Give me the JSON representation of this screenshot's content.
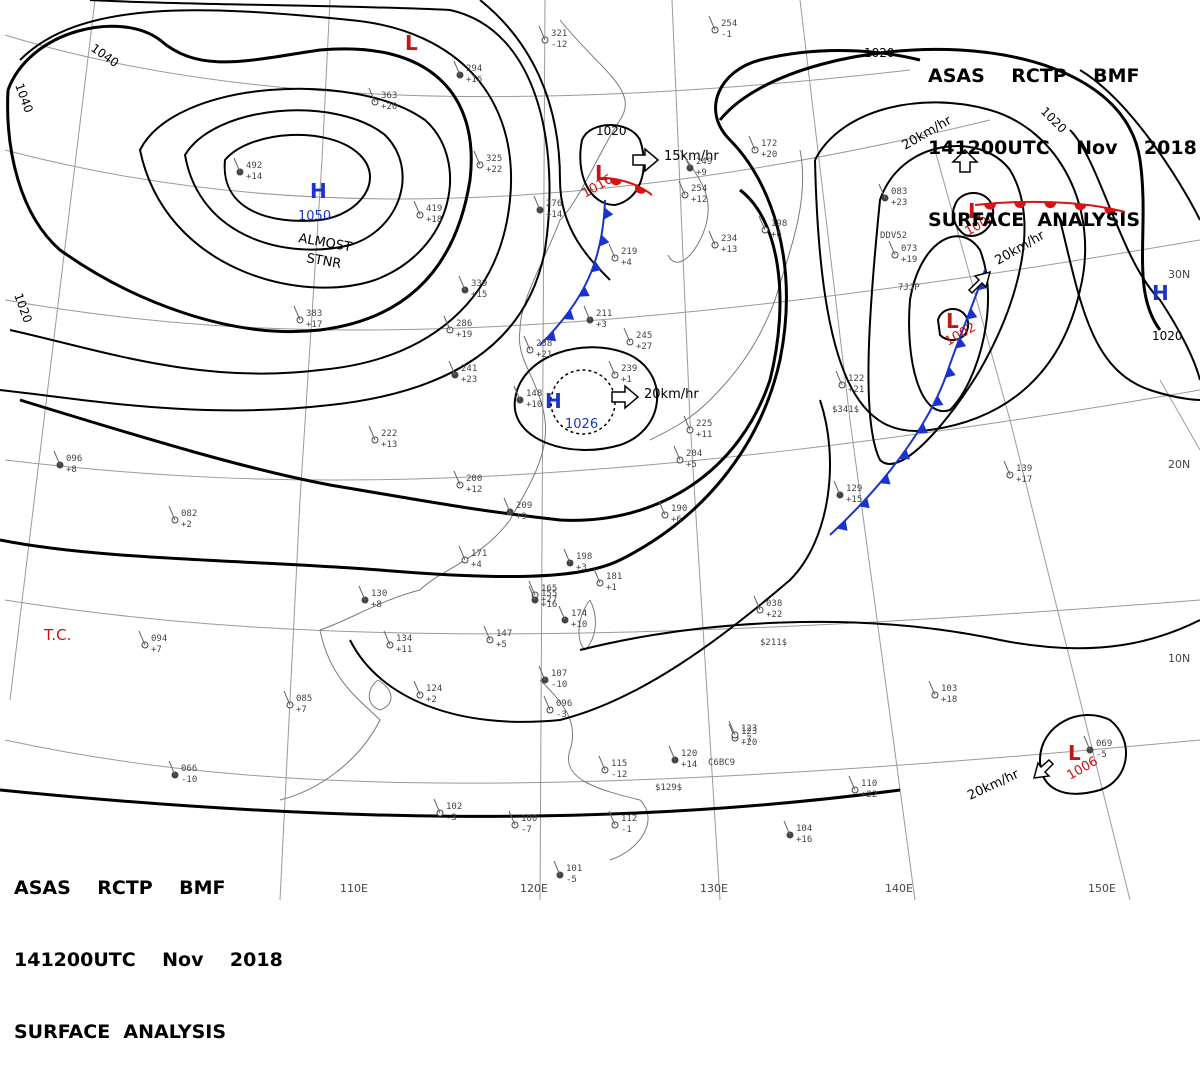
{
  "header_top_right": {
    "line1": "ASAS    RCTP    BMF",
    "line2": "141200UTC    Nov    2018",
    "line3": "SURFACE  ANALYSIS"
  },
  "header_bottom_left": {
    "line1": "ASAS    RCTP    BMF",
    "line2": "141200UTC    Nov    2018",
    "line3": "SURFACE  ANALYSIS"
  },
  "longitude_labels": [
    "110E",
    "120E",
    "130E",
    "140E",
    "150E"
  ],
  "latitude_labels": [
    "30N",
    "20N",
    "10N"
  ],
  "isobar_labels": [
    "1040",
    "1040",
    "1020",
    "1020",
    "1020",
    "1020",
    "1020"
  ],
  "pressure_systems": [
    {
      "type": "H",
      "value": "1050",
      "note": "ALMOST STNR",
      "color": "#1a33cc"
    },
    {
      "type": "H",
      "value": "1026",
      "color": "#1a33cc"
    },
    {
      "type": "H",
      "value": "",
      "color": "#1a33cc"
    },
    {
      "type": "L",
      "value": "1016",
      "color": "#cc1111"
    },
    {
      "type": "L",
      "value": "",
      "color": "#cc1111"
    },
    {
      "type": "L",
      "value": "1000",
      "color": "#cc1111"
    },
    {
      "type": "L",
      "value": "1002",
      "color": "#cc1111"
    },
    {
      "type": "L",
      "value": "1006",
      "color": "#cc1111"
    }
  ],
  "almost_stnr_line1": "ALMOST",
  "almost_stnr_line2": "STNR",
  "movement_labels": [
    "15km/hr",
    "20km/hr",
    "20km/hr",
    "20km/hr",
    "20km/hr"
  ],
  "tc_label": "T.C.",
  "colors": {
    "high": "#1a33cc",
    "low": "#cc1111",
    "cold_front": "#1a33cc",
    "warm_front": "#dd1111",
    "isobar": "#000000",
    "grid": "#999999",
    "coast": "#777777"
  },
  "station_values": [
    "492",
    "363",
    "325",
    "294",
    "419",
    "383",
    "339",
    "238",
    "286",
    "241",
    "222",
    "200",
    "209",
    "190",
    "171",
    "198",
    "181",
    "165",
    "174",
    "147",
    "134",
    "130",
    "124",
    "085",
    "066",
    "102",
    "100",
    "101",
    "112",
    "115",
    "120",
    "123",
    "110",
    "104",
    "103",
    "139",
    "129",
    "122",
    "073",
    "083",
    "234",
    "254",
    "249",
    "198",
    "219",
    "211",
    "239",
    "245",
    "148",
    "204",
    "225",
    "096",
    "082",
    "094",
    "107",
    "096",
    "123",
    "069",
    "254",
    "321",
    "276",
    "172",
    "038",
    "155"
  ],
  "station_tendencies": [
    "+14",
    "+20",
    "+22",
    "+16",
    "+18",
    "+17",
    "+15",
    "+21",
    "+19",
    "+23",
    "+13",
    "+12",
    "+9",
    "+6",
    "+4",
    "+3",
    "+1",
    "+27",
    "+10",
    "+5",
    "+11",
    "+8",
    "+2",
    "+7",
    "-10",
    "-3",
    "-7",
    "-5",
    "-1",
    "-12"
  ],
  "special_codes": [
    "$341$",
    "$211$",
    "$129$",
    "C6BC9",
    "DDV52",
    "7JJP"
  ]
}
